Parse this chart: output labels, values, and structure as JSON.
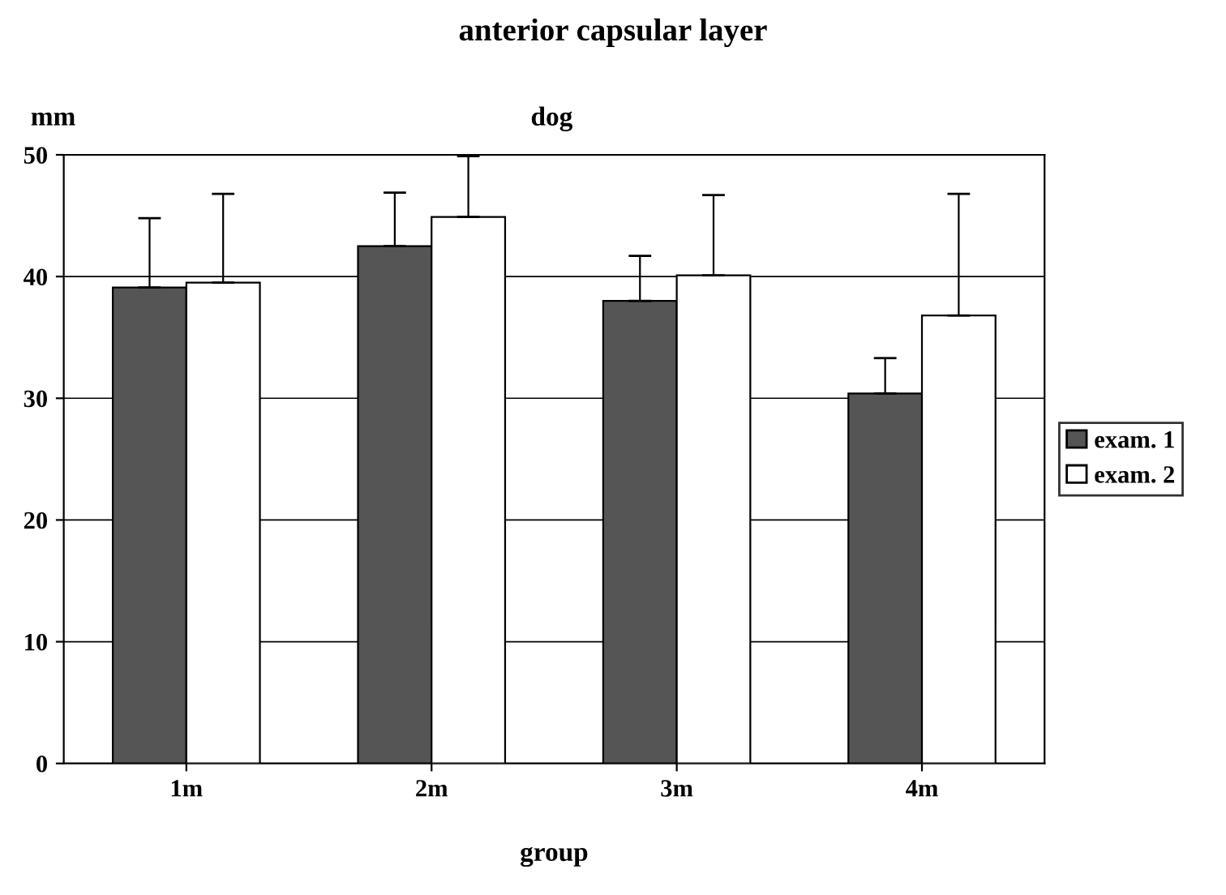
{
  "chart_data": {
    "type": "bar",
    "title": "anterior capsular layer",
    "subtitle": "dog",
    "ylabel": "mm",
    "xlabel": "group",
    "categories": [
      "1m",
      "2m",
      "3m",
      "4m"
    ],
    "series": [
      {
        "name": "exam. 1",
        "color": "#555555",
        "values": [
          39.1,
          42.5,
          38.0,
          30.4
        ],
        "errors": [
          [
            39.1,
            44.8
          ],
          [
            42.5,
            46.9
          ],
          [
            38.0,
            41.7
          ],
          [
            30.4,
            33.3
          ]
        ]
      },
      {
        "name": "exam. 2",
        "color": "#ffffff",
        "values": [
          39.5,
          44.9,
          40.1,
          36.8
        ],
        "errors": [
          [
            39.5,
            46.8
          ],
          [
            44.9,
            49.9
          ],
          [
            40.1,
            46.7
          ],
          [
            36.8,
            46.8
          ]
        ]
      }
    ],
    "ylim": [
      0,
      50
    ],
    "yticks": [
      0,
      10,
      20,
      30,
      40,
      50
    ],
    "grid": "y",
    "legend": "right"
  }
}
